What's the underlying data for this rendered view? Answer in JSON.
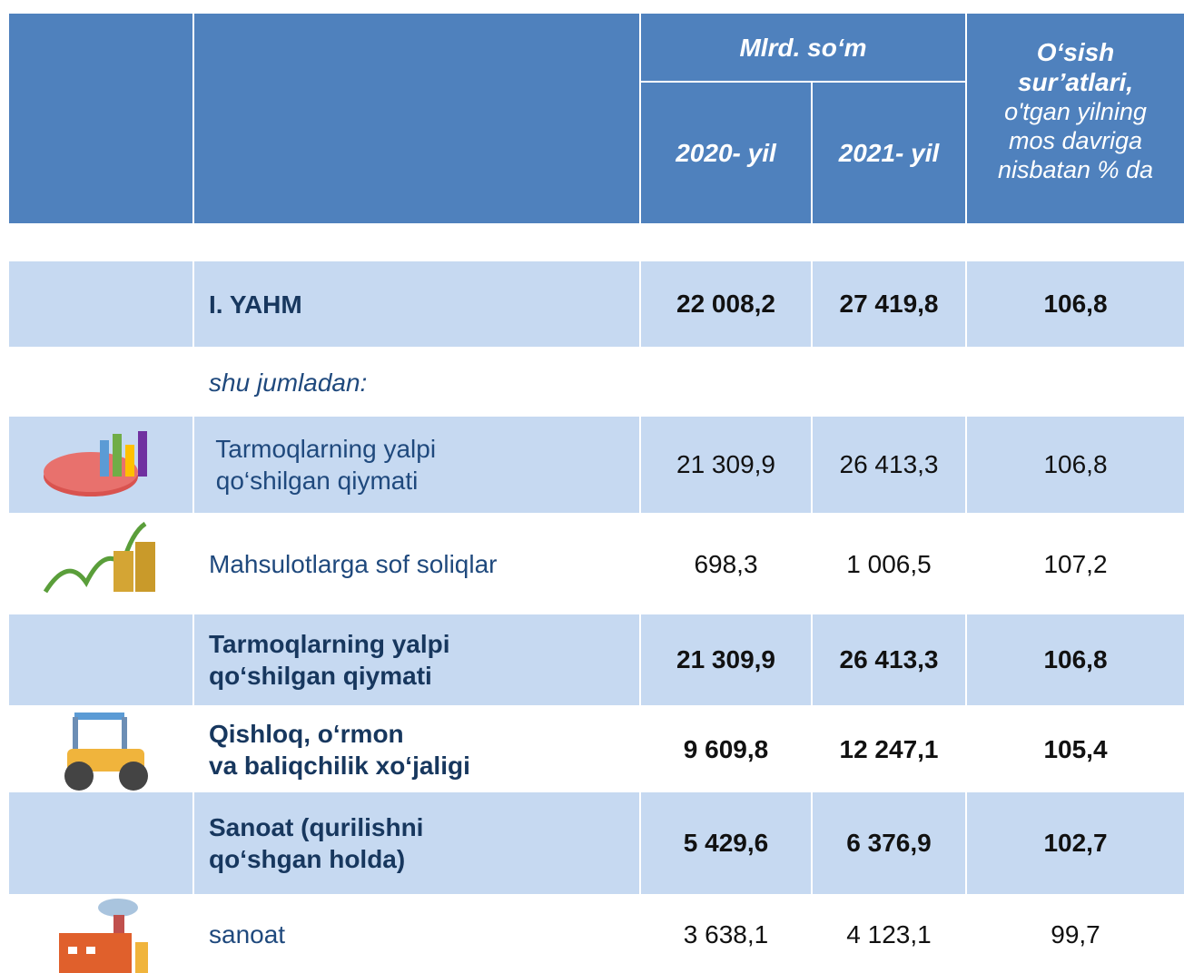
{
  "header": {
    "unit": "Mlrd. so‘m",
    "col_2020": "2020- yil",
    "col_2021": "2021- yil",
    "growth_title": [
      "O‘sish",
      "sur’atlari,"
    ],
    "growth_subtitle": [
      "o'tgan yilning",
      "mos davriga",
      "nisbatan % da"
    ]
  },
  "rows": [
    {
      "label": [
        "I. YAHM"
      ],
      "v2020": "22 008,2",
      "v2021": "27 419,8",
      "growth": "106,8",
      "bold": true
    },
    {
      "label": [
        "shu jumladan:"
      ],
      "note": true
    },
    {
      "label": [
        " Tarmoqlarning yalpi",
        " qo‘shilgan qiymati"
      ],
      "v2020": "21 309,9",
      "v2021": "26 413,3",
      "growth": "106,8",
      "bold": false
    },
    {
      "label": [
        "Mahsulotlarga sof soliqlar"
      ],
      "v2020": "698,3",
      "v2021": "1 006,5",
      "growth": "107,2",
      "bold": false
    },
    {
      "label": [
        "Tarmoqlarning yalpi",
        "qo‘shilgan qiymati"
      ],
      "v2020": "21 309,9",
      "v2021": "26 413,3",
      "growth": "106,8",
      "bold": true
    },
    {
      "label": [
        "Qishloq, o‘rmon",
        "va baliqchilik xo‘jaligi"
      ],
      "v2020": "9 609,8",
      "v2021": "12 247,1",
      "growth": "105,4",
      "bold": true
    },
    {
      "label": [
        "Sanoat (qurilishni",
        "qo‘shgan holda)"
      ],
      "v2020": "5 429,6",
      "v2021": "6 376,9",
      "growth": "102,7",
      "bold": true
    },
    {
      "label": [
        "sanoat"
      ],
      "v2020": "3 638,1",
      "v2021": "4 123,1",
      "growth": "99,7",
      "bold": false
    }
  ]
}
